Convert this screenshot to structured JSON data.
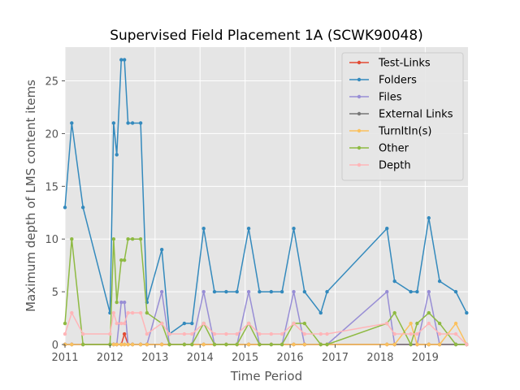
{
  "chart_data": {
    "type": "line",
    "title": "Supervised Field Placement 1A (SCWK90048)",
    "xlabel": "Time Period",
    "ylabel": "Maximum depth of LMS content items",
    "xlim": [
      2011.0,
      2019.95
    ],
    "ylim": [
      0,
      28.2
    ],
    "xticks": [
      2011,
      2012,
      2013,
      2014,
      2015,
      2016,
      2017,
      2018,
      2019
    ],
    "yticks": [
      0,
      5,
      10,
      15,
      20,
      25
    ],
    "grid": true,
    "legend_position": "top-right",
    "colors": {
      "plot_background": "#e5e5e5",
      "grid": "#ffffff",
      "tick_label": "#555555"
    },
    "x": [
      2011.0,
      2011.15,
      2011.4,
      2012.0,
      2012.08,
      2012.15,
      2012.25,
      2012.32,
      2012.4,
      2012.5,
      2012.68,
      2012.82,
      2013.15,
      2013.32,
      2013.65,
      2013.82,
      2014.08,
      2014.32,
      2014.58,
      2014.82,
      2015.08,
      2015.32,
      2015.58,
      2015.82,
      2016.08,
      2016.32,
      2016.68,
      2016.82,
      2018.15,
      2018.32,
      2018.68,
      2018.82,
      2019.08,
      2019.32,
      2019.68,
      2019.92
    ],
    "series": [
      {
        "name": "Test-Links",
        "color": "#e24a33",
        "values": [
          0,
          0,
          0,
          0,
          0,
          0,
          0,
          1,
          0,
          0,
          0,
          0,
          0,
          0,
          0,
          0,
          0,
          0,
          0,
          0,
          0,
          0,
          0,
          0,
          0,
          0,
          0,
          0,
          0,
          0,
          0,
          0,
          0,
          0,
          0,
          0
        ]
      },
      {
        "name": "Folders",
        "color": "#348abd",
        "values": [
          13,
          21,
          13,
          3,
          21,
          18,
          27,
          27,
          21,
          21,
          21,
          4,
          9,
          1,
          2,
          2,
          11,
          5,
          5,
          5,
          11,
          5,
          5,
          5,
          11,
          5,
          3,
          5,
          11,
          6,
          5,
          5,
          12,
          6,
          5,
          3
        ]
      },
      {
        "name": "Files",
        "color": "#988ed5",
        "values": [
          0,
          0,
          0,
          0,
          0,
          0,
          4,
          4,
          0,
          0,
          0,
          0,
          5,
          0,
          0,
          0,
          5,
          0,
          0,
          0,
          5,
          0,
          0,
          0,
          5,
          0,
          0,
          0,
          5,
          0,
          0,
          0,
          5,
          0,
          0,
          0
        ]
      },
      {
        "name": "External Links",
        "color": "#777777",
        "values": [
          0,
          0,
          0,
          0,
          0,
          0,
          0,
          0,
          0,
          0,
          0,
          0,
          0,
          0,
          0,
          0,
          0,
          0,
          0,
          0,
          0,
          0,
          0,
          0,
          0,
          0,
          0,
          0,
          0,
          0,
          0,
          0,
          0,
          0,
          0,
          0
        ]
      },
      {
        "name": "TurnItIn(s)",
        "color": "#fbc15e",
        "values": [
          0,
          0,
          0,
          0,
          0,
          0,
          0,
          0,
          0,
          0,
          0,
          0,
          0,
          0,
          0,
          0,
          0,
          0,
          0,
          0,
          0,
          0,
          0,
          0,
          0,
          0,
          0,
          0,
          0,
          0,
          2,
          0,
          0,
          0,
          2,
          0
        ]
      },
      {
        "name": "Other",
        "color": "#8eba42",
        "values": [
          2,
          10,
          0,
          0,
          10,
          4,
          8,
          8,
          10,
          10,
          10,
          3,
          2,
          0,
          0,
          0,
          2,
          0,
          0,
          0,
          2,
          0,
          0,
          0,
          2,
          2,
          0,
          0,
          2,
          3,
          0,
          2,
          3,
          2,
          0,
          0
        ]
      },
      {
        "name": "Depth",
        "color": "#ffb5b8",
        "values": [
          1,
          3,
          1,
          1,
          3,
          2,
          2,
          2,
          3,
          3,
          3,
          1,
          2,
          1,
          1,
          1,
          2,
          1,
          1,
          1,
          2,
          1,
          1,
          1,
          2,
          1,
          1,
          1,
          2,
          1,
          1,
          1,
          2,
          1,
          1,
          0
        ]
      }
    ]
  }
}
